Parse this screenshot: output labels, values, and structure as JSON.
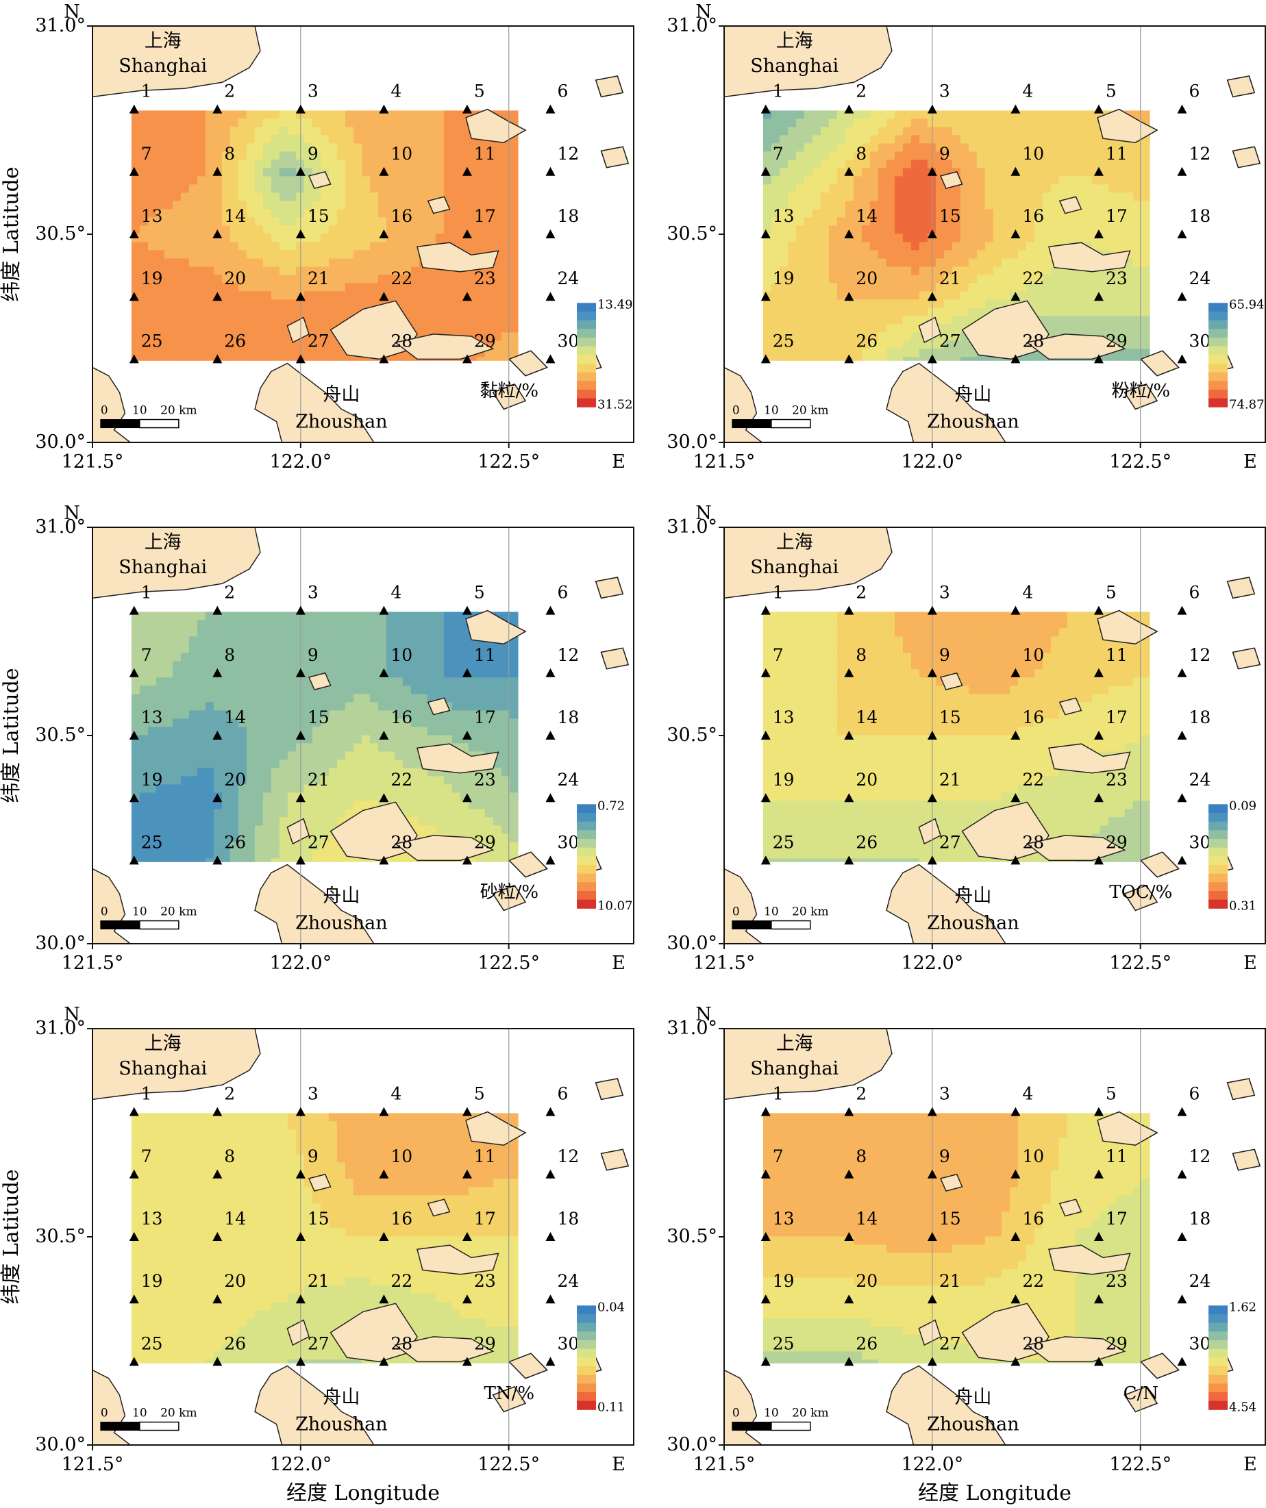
{
  "figure": {
    "y_axis_title": "纬度 Latitude",
    "x_axis_title": "经度 Longitude",
    "north_label": "N",
    "east_label": "E",
    "lat_ticks": [
      "31.0°",
      "30.5°",
      "30.0°"
    ],
    "lon_ticks": [
      "121.5°",
      "122.0°",
      "122.5°"
    ],
    "places": {
      "shanghai_cn": "上海",
      "shanghai_en": "Shanghai",
      "zhoushan_cn": "舟山",
      "zhoushan_en": "Zhoushan"
    },
    "scale_bar": [
      "0",
      "10",
      "20 km"
    ],
    "stations": [
      {
        "id": "1",
        "lon": 121.6,
        "lat": 30.8
      },
      {
        "id": "2",
        "lon": 121.8,
        "lat": 30.8
      },
      {
        "id": "3",
        "lon": 122.0,
        "lat": 30.8
      },
      {
        "id": "4",
        "lon": 122.2,
        "lat": 30.8
      },
      {
        "id": "5",
        "lon": 122.4,
        "lat": 30.8
      },
      {
        "id": "6",
        "lon": 122.6,
        "lat": 30.8
      },
      {
        "id": "7",
        "lon": 121.6,
        "lat": 30.65
      },
      {
        "id": "8",
        "lon": 121.8,
        "lat": 30.65
      },
      {
        "id": "9",
        "lon": 122.0,
        "lat": 30.65
      },
      {
        "id": "10",
        "lon": 122.2,
        "lat": 30.65
      },
      {
        "id": "11",
        "lon": 122.4,
        "lat": 30.65
      },
      {
        "id": "12",
        "lon": 122.6,
        "lat": 30.65
      },
      {
        "id": "13",
        "lon": 121.6,
        "lat": 30.5
      },
      {
        "id": "14",
        "lon": 121.8,
        "lat": 30.5
      },
      {
        "id": "15",
        "lon": 122.0,
        "lat": 30.5
      },
      {
        "id": "16",
        "lon": 122.2,
        "lat": 30.5
      },
      {
        "id": "17",
        "lon": 122.4,
        "lat": 30.5
      },
      {
        "id": "18",
        "lon": 122.6,
        "lat": 30.5
      },
      {
        "id": "19",
        "lon": 121.6,
        "lat": 30.35
      },
      {
        "id": "20",
        "lon": 121.8,
        "lat": 30.35
      },
      {
        "id": "21",
        "lon": 122.0,
        "lat": 30.35
      },
      {
        "id": "22",
        "lon": 122.2,
        "lat": 30.35
      },
      {
        "id": "23",
        "lon": 122.4,
        "lat": 30.35
      },
      {
        "id": "24",
        "lon": 122.6,
        "lat": 30.35
      },
      {
        "id": "25",
        "lon": 121.6,
        "lat": 30.2
      },
      {
        "id": "26",
        "lon": 121.8,
        "lat": 30.2
      },
      {
        "id": "27",
        "lon": 122.0,
        "lat": 30.2
      },
      {
        "id": "28",
        "lon": 122.2,
        "lat": 30.2
      },
      {
        "id": "29",
        "lon": 122.4,
        "lat": 30.2
      },
      {
        "id": "30",
        "lon": 122.6,
        "lat": 30.2
      }
    ],
    "colors": {
      "land": "#fae3bf",
      "coast": "#222222",
      "scale": [
        "#d7322c",
        "#ee6a3c",
        "#f6924a",
        "#f8b45c",
        "#f5d268",
        "#eee47a",
        "#d8e286",
        "#b5d29a",
        "#8fbfa3",
        "#6aa8b0",
        "#4b93bd",
        "#3b80c0"
      ]
    }
  },
  "chart_data": [
    {
      "type": "contour-map",
      "variable": "黏粒/%",
      "legend_max": "13.49",
      "legend_min": "31.52",
      "extent": {
        "lon": [
          121.5,
          122.8
        ],
        "lat": [
          30.0,
          31.0
        ]
      },
      "field": [
        [
          2.5,
          2.5,
          4.5,
          3.0,
          2.5,
          2.0
        ],
        [
          2.0,
          2.5,
          8.0,
          3.5,
          2.5,
          2.0
        ],
        [
          2.5,
          3.0,
          5.0,
          4.0,
          2.5,
          2.0
        ],
        [
          2.0,
          2.0,
          2.5,
          2.0,
          2.0,
          2.0
        ],
        [
          1.5,
          2.0,
          2.0,
          2.0,
          2.0,
          3.0
        ]
      ]
    },
    {
      "type": "contour-map",
      "variable": "粉粒/%",
      "legend_max": "65.94",
      "legend_min": "74.87",
      "extent": {
        "lon": [
          121.5,
          122.8
        ],
        "lat": [
          30.0,
          31.0
        ]
      },
      "field": [
        [
          9.0,
          6.5,
          4.0,
          4.5,
          4.5,
          3.0
        ],
        [
          7.0,
          4.5,
          0.5,
          4.0,
          4.5,
          4.0
        ],
        [
          5.5,
          3.0,
          1.0,
          3.5,
          5.5,
          5.0
        ],
        [
          4.5,
          3.5,
          3.5,
          5.5,
          6.0,
          6.0
        ],
        [
          4.5,
          3.5,
          7.0,
          8.0,
          8.0,
          8.0
        ]
      ]
    },
    {
      "type": "contour-map",
      "variable": "砂粒/%",
      "legend_max": "0.72",
      "legend_min": "10.07",
      "extent": {
        "lon": [
          121.5,
          122.8
        ],
        "lat": [
          30.0,
          31.0
        ]
      },
      "field": [
        [
          6.5,
          7.5,
          8.0,
          8.0,
          9.5,
          10.0
        ],
        [
          7.0,
          8.0,
          8.5,
          8.0,
          9.5,
          9.5
        ],
        [
          8.5,
          9.0,
          8.0,
          6.5,
          7.5,
          8.0
        ],
        [
          9.5,
          10.0,
          6.5,
          5.5,
          6.0,
          7.5
        ],
        [
          9.5,
          9.5,
          6.0,
          4.5,
          5.0,
          6.0
        ]
      ]
    },
    {
      "type": "contour-map",
      "variable": "TOC/%",
      "legend_max": "0.09",
      "legend_min": "0.31",
      "extent": {
        "lon": [
          121.5,
          122.8
        ],
        "lat": [
          30.0,
          31.0
        ]
      },
      "field": [
        [
          4.5,
          4.5,
          3.0,
          2.5,
          3.5,
          4.5
        ],
        [
          4.5,
          4.5,
          3.5,
          3.0,
          4.0,
          4.5
        ],
        [
          4.5,
          4.5,
          4.5,
          4.5,
          5.0,
          5.5
        ],
        [
          5.5,
          5.5,
          5.5,
          5.5,
          6.0,
          6.5
        ],
        [
          6.5,
          6.5,
          6.5,
          6.0,
          6.5,
          7.5
        ]
      ]
    },
    {
      "type": "contour-map",
      "variable": "TN/%",
      "legend_max": "0.04",
      "legend_min": "0.11",
      "extent": {
        "lon": [
          121.5,
          122.8
        ],
        "lat": [
          30.0,
          31.0
        ]
      },
      "field": [
        [
          5.5,
          5.0,
          4.5,
          2.8,
          2.8,
          3.0
        ],
        [
          5.5,
          5.5,
          5.0,
          3.0,
          3.0,
          3.5
        ],
        [
          4.5,
          5.0,
          5.0,
          4.5,
          4.5,
          4.5
        ],
        [
          4.5,
          5.0,
          5.5,
          6.0,
          5.5,
          5.0
        ],
        [
          5.0,
          5.5,
          6.5,
          6.5,
          6.0,
          6.0
        ]
      ]
    },
    {
      "type": "contour-map",
      "variable": "C/N",
      "legend_max": "1.62",
      "legend_min": "4.54",
      "extent": {
        "lon": [
          121.5,
          122.8
        ],
        "lat": [
          30.0,
          31.0
        ]
      },
      "field": [
        [
          2.8,
          2.8,
          2.8,
          3.0,
          4.5,
          5.0
        ],
        [
          2.8,
          2.8,
          2.8,
          2.8,
          5.0,
          5.5
        ],
        [
          3.5,
          3.5,
          3.0,
          3.5,
          5.5,
          6.0
        ],
        [
          5.0,
          5.0,
          4.8,
          5.0,
          5.5,
          6.5
        ],
        [
          7.0,
          7.0,
          6.0,
          5.5,
          5.5,
          6.5
        ]
      ]
    }
  ]
}
